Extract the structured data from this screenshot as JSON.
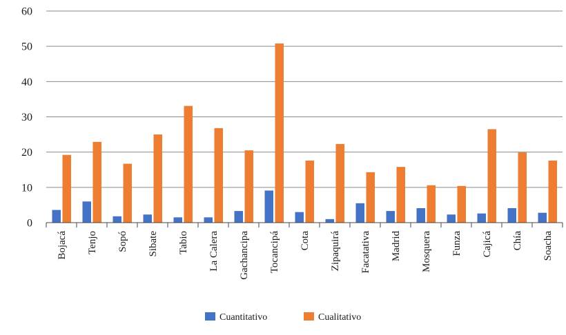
{
  "chart_data": {
    "type": "bar",
    "categories": [
      "Bojacá",
      "Tenjo",
      "Sopó",
      "Sibate",
      "Tabio",
      "La Calera",
      "Gachancipa",
      "Tocancipá",
      "Cota",
      "Zipaquirá",
      "Facatativa",
      "Madrid",
      "Mosquera",
      "Funza",
      "Cajicá",
      "Chía",
      "Soacha"
    ],
    "series": [
      {
        "name": "Cuantitativo",
        "color": "#4472c4",
        "values": [
          3.6,
          6.0,
          1.8,
          2.3,
          1.5,
          1.5,
          3.3,
          9.1,
          3.0,
          1.0,
          5.5,
          3.3,
          4.1,
          2.3,
          2.6,
          4.1,
          2.8
        ]
      },
      {
        "name": "Cualitativo",
        "color": "#ed7d31",
        "values": [
          19.2,
          22.9,
          16.7,
          25.0,
          33.1,
          26.8,
          20.5,
          50.8,
          17.6,
          22.3,
          14.3,
          15.8,
          10.6,
          10.4,
          26.5,
          19.9,
          17.6
        ]
      }
    ],
    "yticks": [
      0,
      10,
      20,
      30,
      40,
      50,
      60
    ],
    "ylim": [
      0,
      60
    ],
    "grid": true,
    "legend_position": "bottom-center",
    "title": "",
    "xlabel": "",
    "ylabel": ""
  }
}
